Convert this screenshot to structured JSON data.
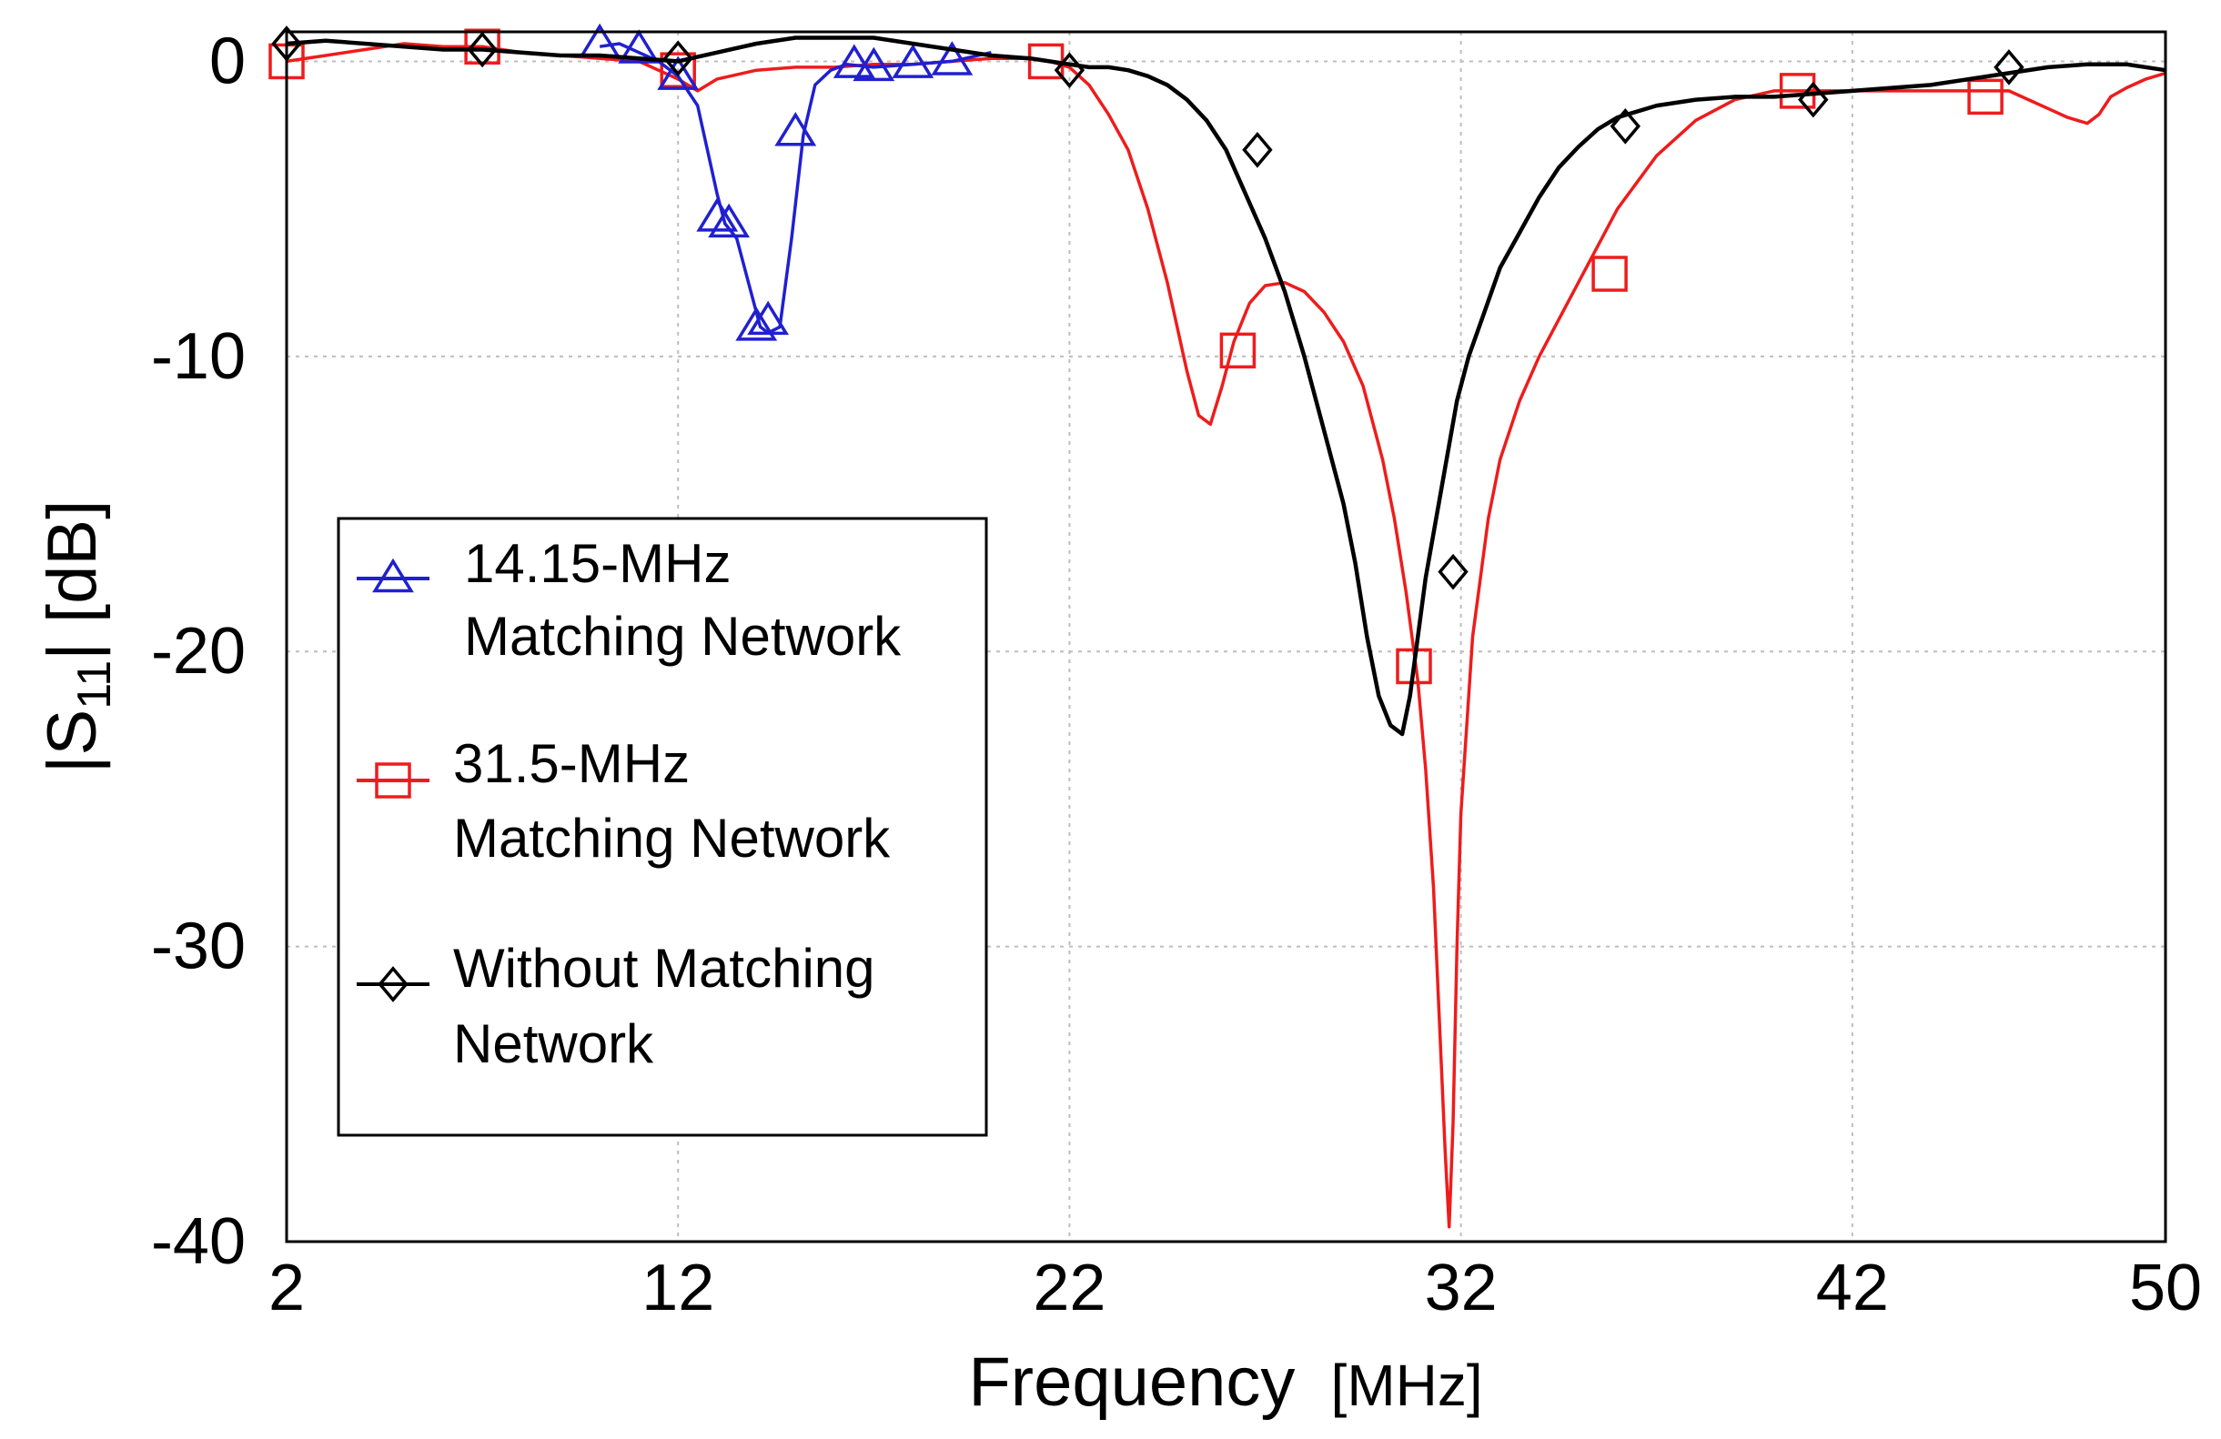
{
  "chart_data": {
    "type": "line",
    "title": "",
    "xlabel": "Frequency",
    "xlabel_unit": "[MHz]",
    "ylabel_parts": {
      "pre": "|S",
      "sub": "11",
      "post": "| [dB]"
    },
    "xlim": [
      2,
      50
    ],
    "ylim": [
      -40,
      1
    ],
    "x_ticks": [
      2,
      12,
      22,
      32,
      42,
      50
    ],
    "x_tick_labels": [
      "2",
      "12",
      "22",
      "32",
      "42",
      "50"
    ],
    "y_ticks": [
      0,
      -10,
      -20,
      -30,
      -40
    ],
    "y_tick_labels": [
      "0",
      "-10",
      "-20",
      "-30",
      "-40"
    ],
    "grid": true,
    "legend_position": "left-middle",
    "legend": [
      {
        "lines": [
          "14.15-MHz",
          "Matching Network"
        ],
        "marker": "triangle",
        "color": "#2020d0"
      },
      {
        "lines": [
          "31.5-MHz",
          "Matching Network"
        ],
        "marker": "square",
        "color": "#ee1c1c"
      },
      {
        "lines": [
          "Without Matching",
          "Network"
        ],
        "marker": "diamond",
        "color": "#000000"
      }
    ],
    "series": [
      {
        "name": "14.15-MHz Matching Network",
        "color": "#2020d0",
        "marker": "triangle",
        "x": [
          10.0,
          10.5,
          11.0,
          11.5,
          12.0,
          12.5,
          13.0,
          13.2,
          13.5,
          13.8,
          14.1,
          14.3,
          14.6,
          14.9,
          15.2,
          15.5,
          15.9,
          16.3,
          17.0,
          18.0,
          19.0,
          20.0
        ],
        "y": [
          0.5,
          0.6,
          0.3,
          0.0,
          -0.5,
          -1.5,
          -4.5,
          -5.5,
          -6.0,
          -7.5,
          -9.0,
          -9.2,
          -9.0,
          -6.0,
          -2.5,
          -0.8,
          -0.3,
          -0.1,
          -0.2,
          -0.1,
          0.0,
          0.3
        ],
        "marker_x": [
          10.0,
          11.0,
          12.0,
          13.0,
          13.3,
          14.0,
          14.3,
          15.0,
          16.5,
          17.0,
          18.0,
          19.0
        ],
        "marker_y": [
          0.6,
          0.4,
          -0.5,
          -5.3,
          -5.5,
          -9.0,
          -8.8,
          -2.4,
          -0.1,
          -0.2,
          -0.1,
          0.0
        ]
      },
      {
        "name": "31.5-MHz Matching Network",
        "color": "#ee1c1c",
        "marker": "square",
        "x": [
          2.0,
          3.0,
          4.0,
          5.0,
          6.0,
          7.0,
          8.0,
          9.0,
          10.0,
          11.0,
          11.5,
          12.0,
          12.5,
          13.0,
          14.0,
          15.0,
          16.0,
          17.0,
          18.0,
          19.0,
          20.0,
          21.0,
          21.5,
          22.0,
          22.5,
          23.0,
          23.5,
          24.0,
          24.5,
          25.0,
          25.3,
          25.6,
          25.9,
          26.2,
          26.6,
          27.0,
          27.5,
          28.0,
          28.5,
          29.0,
          29.5,
          30.0,
          30.3,
          30.6,
          30.9,
          31.1,
          31.3,
          31.5,
          31.6,
          31.7,
          31.8,
          31.9,
          32.0,
          32.3,
          32.7,
          33.0,
          33.5,
          34.0,
          35.0,
          36.0,
          37.0,
          38.0,
          39.0,
          40.0,
          41.0,
          42.0,
          43.0,
          44.0,
          45.0,
          46.0,
          46.5,
          47.0,
          47.5,
          48.0,
          48.3,
          48.6,
          49.0,
          49.5,
          50.0
        ],
        "y": [
          0.0,
          0.2,
          0.4,
          0.6,
          0.5,
          0.5,
          0.3,
          0.2,
          0.1,
          0.0,
          -0.3,
          -0.6,
          -1.0,
          -0.6,
          -0.3,
          -0.2,
          -0.2,
          -0.1,
          -0.1,
          0.0,
          0.1,
          0.1,
          0.0,
          -0.2,
          -0.8,
          -1.8,
          -3.0,
          -5.0,
          -7.5,
          -10.5,
          -12.0,
          -12.3,
          -11.0,
          -9.5,
          -8.2,
          -7.6,
          -7.5,
          -7.8,
          -8.5,
          -9.5,
          -11.0,
          -13.5,
          -15.5,
          -18.0,
          -21.0,
          -24.0,
          -28.0,
          -34.0,
          -37.0,
          -39.5,
          -36.0,
          -30.0,
          -25.5,
          -19.5,
          -15.5,
          -13.5,
          -11.5,
          -10.0,
          -7.5,
          -5.0,
          -3.2,
          -2.0,
          -1.3,
          -1.0,
          -1.0,
          -1.0,
          -1.0,
          -1.0,
          -1.0,
          -1.0,
          -1.3,
          -1.6,
          -1.9,
          -2.1,
          -1.8,
          -1.2,
          -0.9,
          -0.6,
          -0.4
        ],
        "marker_x": [
          2.0,
          7.0,
          12.0,
          21.4,
          26.3,
          30.8,
          35.8,
          40.6,
          45.4
        ],
        "marker_y": [
          0.0,
          0.5,
          -0.3,
          0.0,
          -9.8,
          -20.5,
          -7.2,
          -1.0,
          -1.2
        ]
      },
      {
        "name": "Without Matching Network",
        "color": "#000000",
        "marker": "diamond",
        "x": [
          2.0,
          3.0,
          4.0,
          5.0,
          6.0,
          7.0,
          8.0,
          9.0,
          10.0,
          11.0,
          12.0,
          13.0,
          14.0,
          15.0,
          16.0,
          17.0,
          18.0,
          19.0,
          20.0,
          21.0,
          22.0,
          22.5,
          23.0,
          23.5,
          24.0,
          24.5,
          25.0,
          25.5,
          26.0,
          26.5,
          27.0,
          27.5,
          28.0,
          28.5,
          29.0,
          29.3,
          29.6,
          29.9,
          30.2,
          30.5,
          30.7,
          30.9,
          31.1,
          31.3,
          31.5,
          31.7,
          31.9,
          32.2,
          32.6,
          33.0,
          33.5,
          34.0,
          34.5,
          35.0,
          35.5,
          36.0,
          37.0,
          38.0,
          39.0,
          40.0,
          41.0,
          42.0,
          43.0,
          44.0,
          45.0,
          46.0,
          47.0,
          48.0,
          49.0,
          50.0
        ],
        "y": [
          0.6,
          0.7,
          0.6,
          0.5,
          0.4,
          0.4,
          0.3,
          0.2,
          0.2,
          0.1,
          0.0,
          0.3,
          0.6,
          0.8,
          0.8,
          0.8,
          0.6,
          0.4,
          0.2,
          0.1,
          -0.1,
          -0.2,
          -0.2,
          -0.3,
          -0.5,
          -0.8,
          -1.3,
          -2.0,
          -3.0,
          -4.5,
          -6.0,
          -7.8,
          -10.0,
          -12.5,
          -15.0,
          -17.0,
          -19.5,
          -21.5,
          -22.5,
          -22.8,
          -21.5,
          -19.5,
          -17.5,
          -16.0,
          -14.5,
          -13.0,
          -11.5,
          -10.0,
          -8.5,
          -7.0,
          -5.8,
          -4.6,
          -3.6,
          -2.9,
          -2.3,
          -1.9,
          -1.5,
          -1.3,
          -1.2,
          -1.2,
          -1.1,
          -1.0,
          -0.9,
          -0.8,
          -0.6,
          -0.4,
          -0.2,
          -0.1,
          -0.1,
          -0.3
        ],
        "marker_x": [
          2.0,
          7.0,
          12.0,
          22.0,
          26.8,
          31.8,
          36.2,
          41.0,
          46.0
        ],
        "marker_y": [
          0.6,
          0.4,
          0.1,
          -0.3,
          -3.0,
          -17.3,
          -2.2,
          -1.3,
          -0.2
        ]
      }
    ]
  }
}
